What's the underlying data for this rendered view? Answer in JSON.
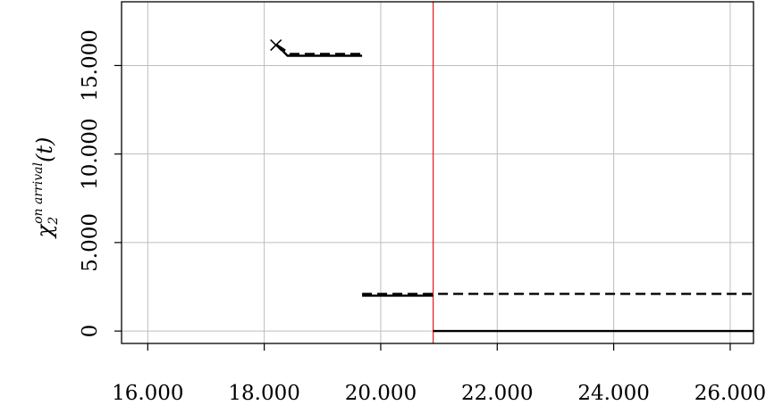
{
  "chart_data": {
    "type": "line",
    "title": "",
    "xlabel": "",
    "ylabel": {
      "symbol": "χ",
      "subscript": "2",
      "superscript": "on arrival",
      "argument": "(t)"
    },
    "xlim": [
      15550,
      26400
    ],
    "ylim": [
      -700,
      18600
    ],
    "x_ticks": [
      16000,
      18000,
      20000,
      22000,
      24000,
      26000
    ],
    "x_tick_labels": [
      "16.000",
      "18.000",
      "20.000",
      "22.000",
      "24.000",
      "26.000"
    ],
    "y_ticks": [
      0,
      5000,
      10000,
      15000
    ],
    "y_tick_labels": [
      "0",
      "5.000",
      "10.000",
      "15.000"
    ],
    "grid": true,
    "series": [
      {
        "style": "solid",
        "color": "#000000",
        "segments": [
          [
            [
              18220,
              16150
            ],
            [
              18400,
              15550
            ],
            [
              19680,
              15550
            ]
          ],
          [
            [
              19680,
              2000
            ],
            [
              20900,
              2000
            ]
          ],
          [
            [
              20900,
              0
            ],
            [
              26400,
              0
            ]
          ]
        ]
      },
      {
        "style": "dashed",
        "color": "#000000",
        "segments": [
          [
            [
              18220,
              16150
            ],
            [
              18450,
              15650
            ],
            [
              19680,
              15650
            ]
          ],
          [
            [
              19680,
              2100
            ],
            [
              26400,
              2100
            ]
          ]
        ]
      }
    ],
    "markers": [
      {
        "shape": "x",
        "x": 18200,
        "y": 16150,
        "color": "#000000"
      }
    ],
    "vertical_lines": [
      {
        "x": 20900,
        "color": "#e31a1c"
      }
    ]
  }
}
